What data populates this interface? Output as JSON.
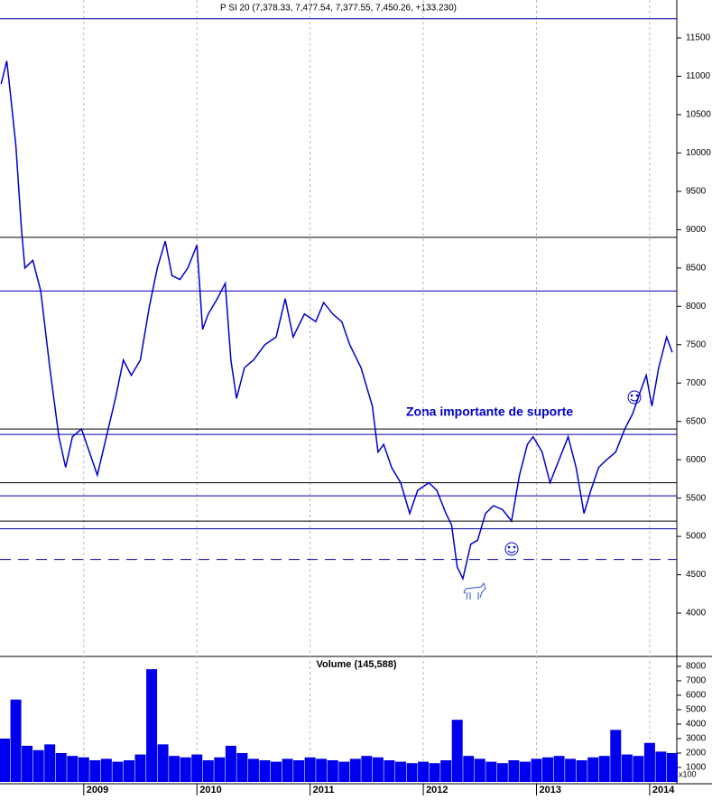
{
  "chart_data": [
    {
      "type": "line",
      "title": "P SI 20 (7,378.33, 7,477.54, 7,377.55, 7,450.26, +133.230)",
      "annotation": "Zona importante de suporte",
      "series": [
        {
          "color": "#0000cc",
          "x": [
            2008.27,
            2008.32,
            2008.35,
            2008.4,
            2008.45,
            2008.48,
            2008.55,
            2008.62,
            2008.7,
            2008.78,
            2008.84,
            2008.9,
            2008.98,
            2009.05,
            2009.12,
            2009.2,
            2009.28,
            2009.35,
            2009.42,
            2009.5,
            2009.58,
            2009.65,
            2009.72,
            2009.78,
            2009.85,
            2009.92,
            2010.0,
            2010.05,
            2010.1,
            2010.18,
            2010.25,
            2010.3,
            2010.35,
            2010.42,
            2010.5,
            2010.6,
            2010.7,
            2010.78,
            2010.85,
            2010.95,
            2011.05,
            2011.12,
            2011.2,
            2011.28,
            2011.35,
            2011.45,
            2011.55,
            2011.6,
            2011.65,
            2011.72,
            2011.8,
            2011.88,
            2011.95,
            2012.05,
            2012.12,
            2012.2,
            2012.25,
            2012.3,
            2012.35,
            2012.42,
            2012.48,
            2012.55,
            2012.62,
            2012.7,
            2012.78,
            2012.85,
            2012.92,
            2012.97,
            2013.05,
            2013.12,
            2013.2,
            2013.28,
            2013.35,
            2013.42,
            2013.48,
            2013.55,
            2013.62,
            2013.7,
            2013.78,
            2013.85,
            2013.92,
            2013.97,
            2014.02,
            2014.08,
            2014.15,
            2014.2
          ],
          "values": [
            10900,
            11200,
            10800,
            10100,
            9000,
            8500,
            8600,
            8200,
            7200,
            6300,
            5900,
            6300,
            6400,
            6100,
            5800,
            6300,
            6800,
            7300,
            7100,
            7300,
            8000,
            8500,
            8850,
            8400,
            8350,
            8500,
            8800,
            7700,
            7900,
            8100,
            8300,
            7300,
            6800,
            7200,
            7300,
            7500,
            7600,
            8100,
            7600,
            7900,
            7800,
            8050,
            7900,
            7800,
            7500,
            7200,
            6700,
            6100,
            6200,
            5900,
            5700,
            5300,
            5600,
            5700,
            5600,
            5300,
            5150,
            4600,
            4450,
            4900,
            4950,
            5300,
            5400,
            5350,
            5200,
            5800,
            6200,
            6300,
            6100,
            5700,
            6000,
            6300,
            5900,
            5300,
            5600,
            5900,
            6000,
            6100,
            6400,
            6600,
            6900,
            7100,
            6700,
            7200,
            7600,
            7400
          ]
        }
      ],
      "levels": [
        {
          "value": 11750,
          "dashed": false
        },
        {
          "value": 8900,
          "dashed": false
        },
        {
          "value": 8200,
          "dashed": false
        },
        {
          "value": 6400,
          "dashed": false
        },
        {
          "value": 6330,
          "dashed": false
        },
        {
          "value": 5700,
          "dashed": false
        },
        {
          "value": 5530,
          "dashed": false
        },
        {
          "value": 5200,
          "dashed": false
        },
        {
          "value": 5100,
          "dashed": false
        },
        {
          "value": 4700,
          "dashed": true
        }
      ],
      "ylim": [
        3435,
        11995
      ],
      "yticks": [
        4000,
        4500,
        5000,
        5500,
        6000,
        6500,
        7000,
        7500,
        8000,
        8500,
        9000,
        9500,
        10000,
        10500,
        11000,
        11500
      ]
    },
    {
      "type": "bar",
      "title": "Volume (145,588)",
      "unit_label": "x100",
      "color": "#0000ee",
      "x": [
        2008.3,
        2008.4,
        2008.5,
        2008.6,
        2008.7,
        2008.8,
        2008.9,
        2009.0,
        2009.1,
        2009.2,
        2009.3,
        2009.4,
        2009.5,
        2009.6,
        2009.7,
        2009.8,
        2009.9,
        2010.0,
        2010.1,
        2010.2,
        2010.3,
        2010.4,
        2010.5,
        2010.6,
        2010.7,
        2010.8,
        2010.9,
        2011.0,
        2011.1,
        2011.2,
        2011.3,
        2011.4,
        2011.5,
        2011.6,
        2011.7,
        2011.8,
        2011.9,
        2012.0,
        2012.1,
        2012.2,
        2012.3,
        2012.4,
        2012.5,
        2012.6,
        2012.7,
        2012.8,
        2012.9,
        2013.0,
        2013.1,
        2013.2,
        2013.3,
        2013.4,
        2013.5,
        2013.6,
        2013.7,
        2013.8,
        2013.9,
        2014.0,
        2014.1,
        2014.2
      ],
      "values": [
        3000,
        5700,
        2500,
        2200,
        2600,
        2000,
        1800,
        1700,
        1500,
        1600,
        1400,
        1500,
        1900,
        7800,
        2600,
        1800,
        1700,
        1900,
        1500,
        1700,
        2500,
        2000,
        1600,
        1500,
        1400,
        1600,
        1500,
        1700,
        1600,
        1500,
        1400,
        1600,
        1800,
        1700,
        1500,
        1400,
        1300,
        1400,
        1300,
        1500,
        4300,
        1800,
        1600,
        1400,
        1300,
        1500,
        1400,
        1600,
        1700,
        1800,
        1600,
        1500,
        1700,
        1800,
        3600,
        1900,
        1800,
        2700,
        2100,
        2000
      ],
      "xlim": [
        2008.26,
        2014.24
      ],
      "xticks": [
        2009,
        2010,
        2011,
        2012,
        2013,
        2014
      ],
      "ylim": [
        0,
        8620
      ],
      "yticks": [
        1000,
        2000,
        3000,
        4000,
        5000,
        6000,
        7000,
        8000
      ]
    }
  ]
}
